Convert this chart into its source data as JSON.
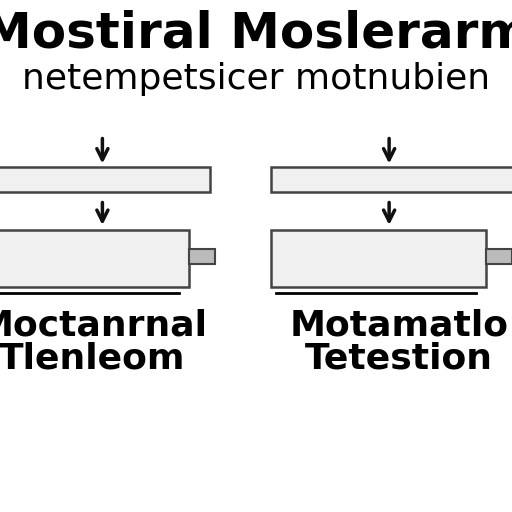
{
  "title_line1": "Mostiral Moslerarm",
  "title_line2": "netempetsicer motnubien",
  "background_color": "#ffffff",
  "left_label_line1": "Moctanrnal",
  "left_label_line2": "Tlenleom",
  "right_label_line1": "Motamatlo",
  "right_label_line2": "Tetestion",
  "box_fill": "#f0f0f0",
  "box_edge": "#444444",
  "arrow_color": "#111111",
  "title_fontsize": 36,
  "subtitle_fontsize": 26,
  "label_fontsize": 26
}
